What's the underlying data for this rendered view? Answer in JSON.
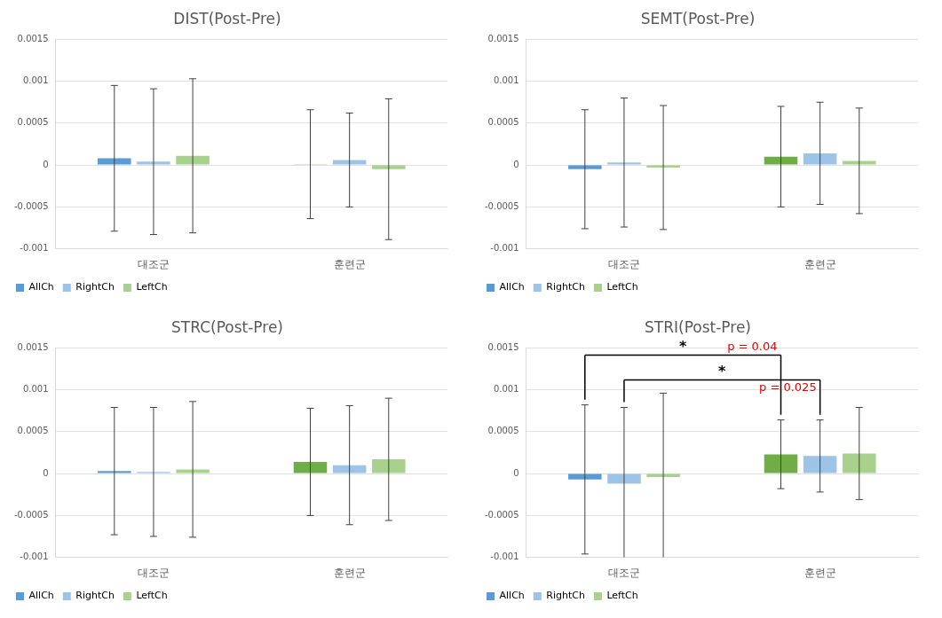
{
  "chart_data": [
    {
      "type": "bar",
      "title": "DIST(Post-Pre)",
      "categories": [
        "대조군",
        "훈련군"
      ],
      "series": [
        {
          "name": "AllCh",
          "color": "#5b9bd5",
          "colors": [
            "#5b9bd5",
            "#70ad47"
          ],
          "values": [
            8e-05,
            1e-05
          ],
          "errors": [
            0.00087,
            0.00065
          ]
        },
        {
          "name": "RightCh",
          "color": "#9dc3e6",
          "values": [
            4e-05,
            6e-05
          ],
          "errors": [
            0.00087,
            0.00056
          ]
        },
        {
          "name": "LeftCh",
          "color": "#a9d18e",
          "values": [
            0.00011,
            -5e-05
          ],
          "errors": [
            0.00092,
            0.00084
          ]
        }
      ],
      "ylim": [
        -0.001,
        0.0015
      ],
      "yticks": [
        -0.001,
        -0.0005,
        0,
        0.0005,
        0.001,
        0.0015
      ],
      "grid": true,
      "legend": "bottom"
    },
    {
      "type": "bar",
      "title": "SEMT(Post-Pre)",
      "categories": [
        "대조군",
        "훈련군"
      ],
      "series": [
        {
          "name": "AllCh",
          "color": "#5b9bd5",
          "colors": [
            "#5b9bd5",
            "#70ad47"
          ],
          "values": [
            -5e-05,
            0.0001
          ],
          "errors": [
            0.00071,
            0.0006
          ]
        },
        {
          "name": "RightCh",
          "color": "#9dc3e6",
          "values": [
            3e-05,
            0.00014
          ],
          "errors": [
            0.00077,
            0.00061
          ]
        },
        {
          "name": "LeftCh",
          "color": "#a9d18e",
          "values": [
            -3e-05,
            5e-05
          ],
          "errors": [
            0.00074,
            0.00063
          ]
        }
      ],
      "ylim": [
        -0.001,
        0.0015
      ],
      "yticks": [
        -0.001,
        -0.0005,
        0,
        0.0005,
        0.001,
        0.0015
      ],
      "grid": true,
      "legend": "bottom"
    },
    {
      "type": "bar",
      "title": "STRC(Post-Pre)",
      "categories": [
        "대조군",
        "훈련군"
      ],
      "series": [
        {
          "name": "AllCh",
          "color": "#5b9bd5",
          "colors": [
            "#5b9bd5",
            "#70ad47"
          ],
          "values": [
            3e-05,
            0.00014
          ],
          "errors": [
            0.00076,
            0.00064
          ]
        },
        {
          "name": "RightCh",
          "color": "#9dc3e6",
          "values": [
            2e-05,
            0.0001
          ],
          "errors": [
            0.00077,
            0.00071
          ]
        },
        {
          "name": "LeftCh",
          "color": "#a9d18e",
          "values": [
            5e-05,
            0.00017
          ],
          "errors": [
            0.00081,
            0.00073
          ]
        }
      ],
      "ylim": [
        -0.001,
        0.0015
      ],
      "yticks": [
        -0.001,
        -0.0005,
        0,
        0.0005,
        0.001,
        0.0015
      ],
      "grid": true,
      "legend": "bottom"
    },
    {
      "type": "bar",
      "title": "STRI(Post-Pre)",
      "categories": [
        "대조군",
        "훈련군"
      ],
      "series": [
        {
          "name": "AllCh",
          "color": "#5b9bd5",
          "colors": [
            "#5b9bd5",
            "#70ad47"
          ],
          "values": [
            -7e-05,
            0.00023
          ],
          "errors": [
            0.00089,
            0.00041
          ]
        },
        {
          "name": "RightCh",
          "color": "#9dc3e6",
          "values": [
            -0.00012,
            0.00021
          ],
          "errors": [
            0.00091,
            0.00043
          ]
        },
        {
          "name": "LeftCh",
          "color": "#a9d18e",
          "values": [
            -4e-05,
            0.00024
          ],
          "errors": [
            0.001,
            0.00055
          ]
        }
      ],
      "annotations": [
        {
          "text": "*",
          "label": "p = 0.04",
          "series": "AllCh",
          "categories": [
            "대조군",
            "훈련군"
          ]
        },
        {
          "text": "*",
          "label": "p = 0.025",
          "series": "RightCh",
          "categories": [
            "대조군",
            "훈련군"
          ]
        }
      ],
      "ylim": [
        -0.001,
        0.0015
      ],
      "yticks": [
        -0.001,
        -0.0005,
        0,
        0.0005,
        0.001,
        0.0015
      ],
      "grid": true,
      "legend": "bottom"
    }
  ]
}
